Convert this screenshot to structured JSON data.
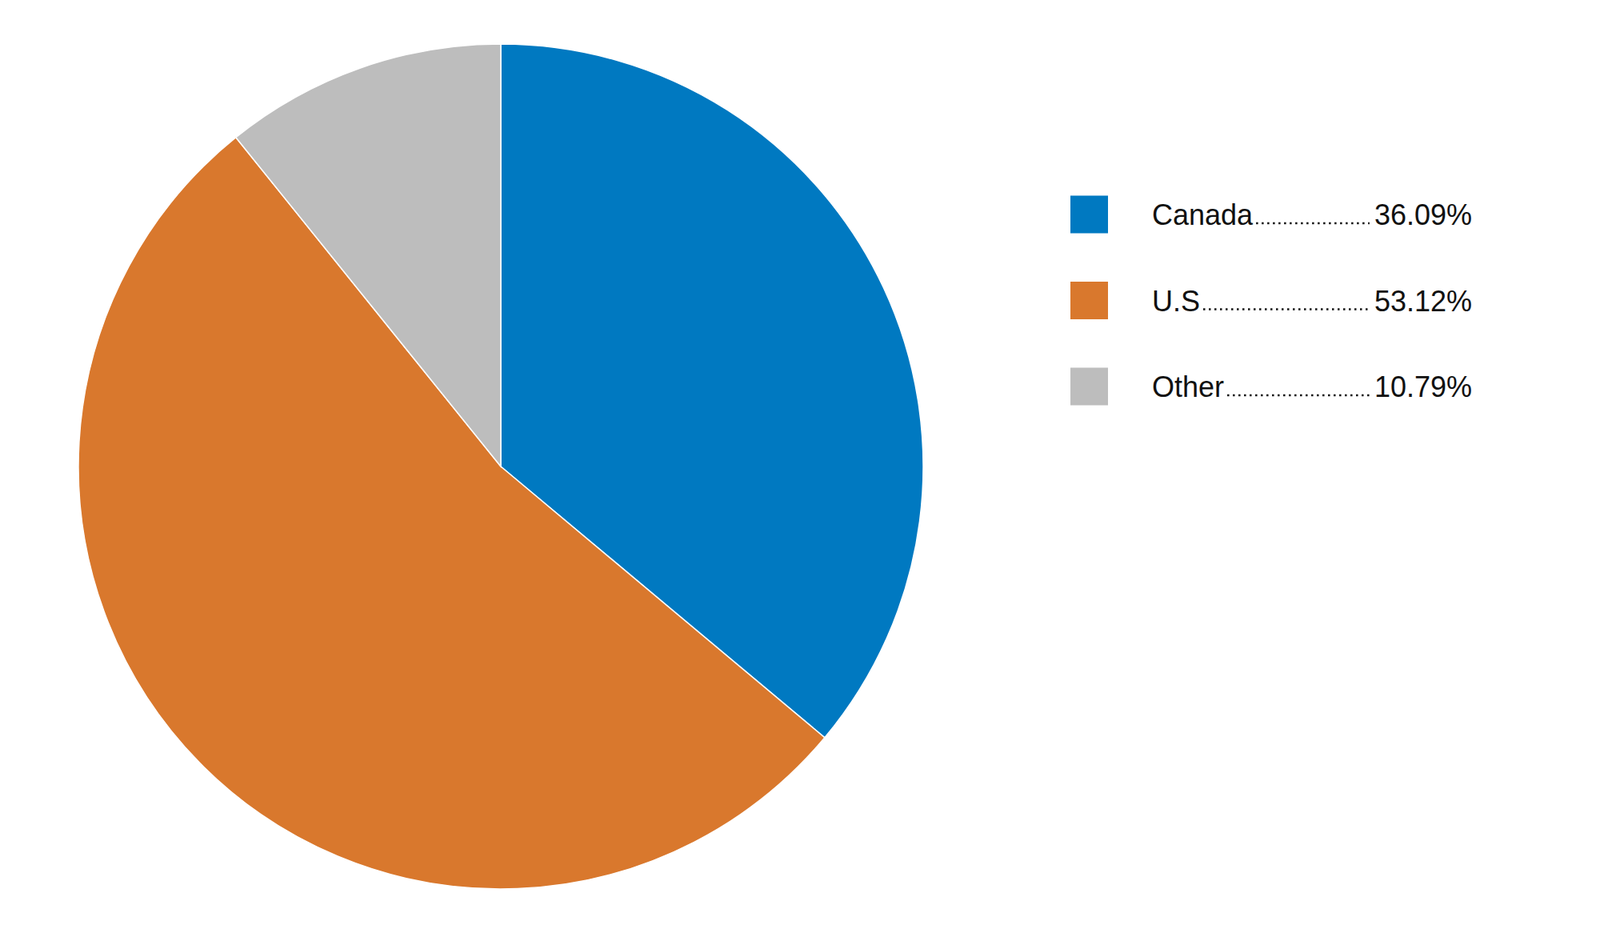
{
  "chart_data": {
    "type": "pie",
    "categories": [
      "Canada",
      "U.S",
      "Other"
    ],
    "values": [
      36.09,
      53.12,
      10.79
    ],
    "value_labels": [
      "36.09%",
      "53.12%",
      "10.79%"
    ],
    "colors": [
      "#0079c1",
      "#d9782d",
      "#bdbdbd"
    ],
    "legend": "right"
  }
}
